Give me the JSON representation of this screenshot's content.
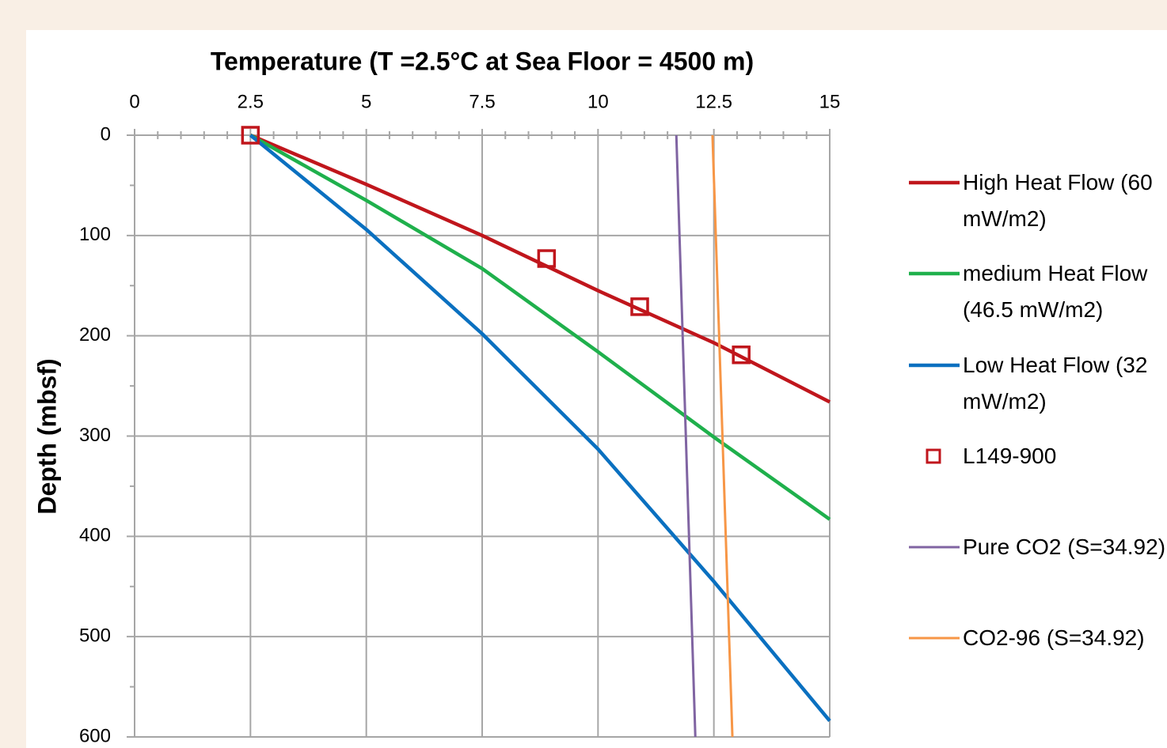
{
  "chart_data": {
    "type": "line",
    "title": "Temperature  (T =2.5°C  at Sea Floor = 4500 m)",
    "y_label": "Depth (mbsf)",
    "xlim": [
      0,
      15
    ],
    "xticks": [
      0,
      2.5,
      5,
      7.5,
      10,
      12.5,
      15
    ],
    "ylim": [
      0,
      600
    ],
    "yticks": [
      0,
      100,
      200,
      300,
      400,
      500,
      600
    ],
    "y_reversed": true,
    "x_axis_position": "top",
    "grid": true,
    "legend": "right",
    "series": [
      {
        "name": "High Heat Flow (60 mW/m2)",
        "color": "#c0161c",
        "marker": "line",
        "x": [
          2.5,
          5,
          7.5,
          10,
          12.5,
          15
        ],
        "values": [
          0,
          49,
          100,
          155,
          207,
          266
        ]
      },
      {
        "name": "medium Heat Flow (46.5 mW/m2)",
        "color": "#1fb04c",
        "marker": "line",
        "x": [
          2.5,
          5,
          7.5,
          10,
          12.5,
          15
        ],
        "values": [
          0,
          65,
          133,
          216,
          301,
          383
        ]
      },
      {
        "name": "Low Heat Flow (32 mW/m2)",
        "color": "#0a70c0",
        "marker": "line",
        "x": [
          2.5,
          5,
          7.5,
          10,
          12.5,
          15
        ],
        "values": [
          0,
          94,
          198,
          313,
          445,
          584
        ]
      },
      {
        "name": "L149-900",
        "color": "#c0161c",
        "marker": "square",
        "x": [
          2.5,
          8.89,
          10.9,
          13.09
        ],
        "values": [
          0,
          123,
          171,
          219
        ]
      },
      {
        "name": "Pure CO2 (S=34.92)",
        "color": "#8064a2",
        "marker": "thin",
        "x": [
          11.69,
          12.1
        ],
        "values": [
          0,
          600
        ]
      },
      {
        "name": "CO2-96 (S=34.92)",
        "color": "#f79646",
        "marker": "thin",
        "x": [
          12.47,
          12.9
        ],
        "values": [
          0,
          600
        ]
      }
    ]
  }
}
